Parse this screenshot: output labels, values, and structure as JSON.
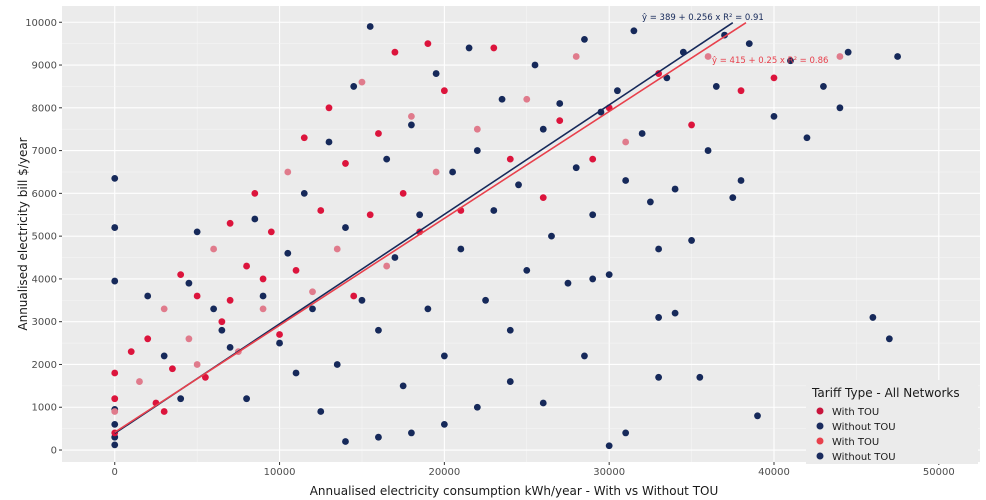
{
  "chart_data": {
    "type": "scatter",
    "xlabel": "Annualised electricity consumption kWh/year - With vs Without TOU",
    "ylabel": "Annualised electricity bill $/year",
    "xlim": [
      -3200,
      52500
    ],
    "ylim": [
      -280,
      10380
    ],
    "x_ticks": [
      0,
      10000,
      20000,
      30000,
      40000,
      50000
    ],
    "y_ticks": [
      0,
      1000,
      2000,
      3000,
      4000,
      5000,
      6000,
      7000,
      8000,
      9000,
      10000
    ],
    "grid": true,
    "legend": {
      "title": "Tariff Type - All Networks",
      "position": "bottom-right",
      "entries": [
        {
          "label": "With TOU",
          "color": "#c8143c"
        },
        {
          "label": "Without TOU",
          "color": "#1a2b5e"
        },
        {
          "label": "With TOU",
          "color": "#e8404c"
        },
        {
          "label": "Without TOU",
          "color": "#1a2b5e"
        }
      ]
    },
    "colors": {
      "with_tou": "#dc143c",
      "with_tou_light": "#e07b8c",
      "without_tou": "#16295a",
      "panel_bg": "#ebebeb"
    },
    "series": [
      {
        "name": "Without TOU",
        "color": "#16295a",
        "points": [
          [
            0,
            6350
          ],
          [
            0,
            5200
          ],
          [
            0,
            3950
          ],
          [
            0,
            950
          ],
          [
            0,
            600
          ],
          [
            0,
            300
          ],
          [
            0,
            120
          ],
          [
            2000,
            3600
          ],
          [
            3000,
            2200
          ],
          [
            4000,
            1200
          ],
          [
            4500,
            3900
          ],
          [
            5000,
            5100
          ],
          [
            6000,
            3300
          ],
          [
            6500,
            2800
          ],
          [
            7000,
            2400
          ],
          [
            8000,
            1200
          ],
          [
            8500,
            5400
          ],
          [
            9000,
            3600
          ],
          [
            10000,
            2500
          ],
          [
            10500,
            4600
          ],
          [
            11000,
            1800
          ],
          [
            11500,
            6000
          ],
          [
            12000,
            3300
          ],
          [
            12500,
            900
          ],
          [
            13000,
            7200
          ],
          [
            13500,
            2000
          ],
          [
            14000,
            5200
          ],
          [
            14500,
            8500
          ],
          [
            15000,
            3500
          ],
          [
            15500,
            9900
          ],
          [
            16000,
            2800
          ],
          [
            16500,
            6800
          ],
          [
            17000,
            4500
          ],
          [
            17500,
            1500
          ],
          [
            18000,
            7600
          ],
          [
            18500,
            5500
          ],
          [
            19000,
            3300
          ],
          [
            19500,
            8800
          ],
          [
            20000,
            2200
          ],
          [
            20500,
            6500
          ],
          [
            21000,
            4700
          ],
          [
            21500,
            9400
          ],
          [
            22000,
            7000
          ],
          [
            22500,
            3500
          ],
          [
            23000,
            5600
          ],
          [
            23500,
            8200
          ],
          [
            24000,
            2800
          ],
          [
            24500,
            6200
          ],
          [
            25000,
            4200
          ],
          [
            25500,
            9000
          ],
          [
            26000,
            7500
          ],
          [
            26500,
            5000
          ],
          [
            27000,
            8100
          ],
          [
            27500,
            3900
          ],
          [
            28000,
            6600
          ],
          [
            28500,
            9600
          ],
          [
            29000,
            5500
          ],
          [
            29500,
            7900
          ],
          [
            30000,
            4100
          ],
          [
            30500,
            8400
          ],
          [
            31000,
            6300
          ],
          [
            31500,
            9800
          ],
          [
            32000,
            7400
          ],
          [
            32500,
            5800
          ],
          [
            33000,
            3100
          ],
          [
            33500,
            8700
          ],
          [
            34000,
            6100
          ],
          [
            34500,
            9300
          ],
          [
            35000,
            4900
          ],
          [
            35500,
            1700
          ],
          [
            36000,
            7000
          ],
          [
            36500,
            8500
          ],
          [
            37000,
            9700
          ],
          [
            37500,
            5900
          ],
          [
            38000,
            6300
          ],
          [
            38500,
            9500
          ],
          [
            39000,
            800
          ],
          [
            40000,
            7800
          ],
          [
            41000,
            9100
          ],
          [
            42000,
            7300
          ],
          [
            43000,
            8500
          ],
          [
            44000,
            8000
          ],
          [
            44500,
            9300
          ],
          [
            46000,
            3100
          ],
          [
            47000,
            2600
          ],
          [
            47500,
            9200
          ],
          [
            30000,
            100
          ],
          [
            31000,
            400
          ],
          [
            33000,
            1700
          ],
          [
            34000,
            3200
          ],
          [
            28500,
            2200
          ],
          [
            26000,
            1100
          ],
          [
            24000,
            1600
          ],
          [
            22000,
            1000
          ],
          [
            20000,
            600
          ],
          [
            18000,
            400
          ],
          [
            16000,
            300
          ],
          [
            14000,
            200
          ],
          [
            29000,
            4000
          ],
          [
            33000,
            4700
          ]
        ]
      },
      {
        "name": "With TOU",
        "color": "#dc143c",
        "points": [
          [
            0,
            1800
          ],
          [
            0,
            1200
          ],
          [
            0,
            900
          ],
          [
            0,
            400
          ],
          [
            1000,
            2300
          ],
          [
            1500,
            1600
          ],
          [
            2000,
            2600
          ],
          [
            2500,
            1100
          ],
          [
            3000,
            3300
          ],
          [
            3500,
            1900
          ],
          [
            4000,
            4100
          ],
          [
            4500,
            2600
          ],
          [
            5000,
            3600
          ],
          [
            5500,
            1700
          ],
          [
            6000,
            4700
          ],
          [
            6500,
            3000
          ],
          [
            7000,
            5300
          ],
          [
            7500,
            2300
          ],
          [
            8000,
            4300
          ],
          [
            8500,
            6000
          ],
          [
            9000,
            3300
          ],
          [
            9500,
            5100
          ],
          [
            10000,
            2700
          ],
          [
            10500,
            6500
          ],
          [
            11000,
            4200
          ],
          [
            11500,
            7300
          ],
          [
            12000,
            3700
          ],
          [
            12500,
            5600
          ],
          [
            13000,
            8000
          ],
          [
            13500,
            4700
          ],
          [
            14000,
            6700
          ],
          [
            14500,
            3600
          ],
          [
            15000,
            8600
          ],
          [
            15500,
            5500
          ],
          [
            16000,
            7400
          ],
          [
            16500,
            4300
          ],
          [
            17000,
            9300
          ],
          [
            17500,
            6000
          ],
          [
            18000,
            7800
          ],
          [
            18500,
            5100
          ],
          [
            19000,
            9500
          ],
          [
            19500,
            6500
          ],
          [
            20000,
            8400
          ],
          [
            21000,
            5600
          ],
          [
            22000,
            7500
          ],
          [
            23000,
            9400
          ],
          [
            24000,
            6800
          ],
          [
            25000,
            8200
          ],
          [
            26000,
            5900
          ],
          [
            27000,
            7700
          ],
          [
            28000,
            9200
          ],
          [
            29000,
            6800
          ],
          [
            30000,
            8000
          ],
          [
            31000,
            7200
          ],
          [
            33000,
            8800
          ],
          [
            35000,
            7600
          ],
          [
            36000,
            9200
          ],
          [
            38000,
            8400
          ],
          [
            40000,
            8700
          ],
          [
            44000,
            9200
          ],
          [
            9000,
            4000
          ],
          [
            7000,
            3500
          ],
          [
            5000,
            2000
          ],
          [
            3000,
            900
          ]
        ]
      }
    ],
    "regression_lines": [
      {
        "name": "Without TOU",
        "equation": "ŷ = 389 + 0.256 x   R² = 0.91",
        "intercept": 389,
        "slope": 0.256,
        "x_range": [
          0,
          37500
        ],
        "color": "#16295a"
      },
      {
        "name": "With TOU",
        "equation": "ŷ = 415 + 0.25 x   R² = 0.86",
        "intercept": 415,
        "slope": 0.25,
        "x_range": [
          0,
          38300
        ],
        "color": "#e8404c"
      }
    ]
  }
}
